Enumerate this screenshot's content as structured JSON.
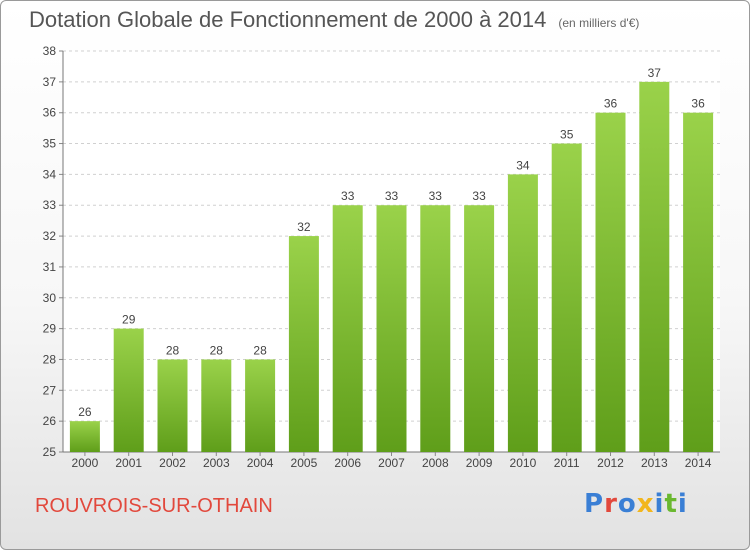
{
  "title": "Dotation Globale de Fonctionnement de 2000 à 2014",
  "subtitle": "(en milliers d'€)",
  "commune": "ROUVROIS-SUR-OTHAIN",
  "logo": {
    "text": "Proxiti",
    "letter_colors": [
      "#3a7fd5",
      "#e2483c",
      "#3a7fd5",
      "#f2b61d",
      "#3a7fd5",
      "#6ab82f",
      "#3a7fd5"
    ]
  },
  "colors": {
    "bar_light": "#9ad24a",
    "bar_dark": "#5f9e1a",
    "grid": "#d0d0d0",
    "commune": "#e2483c"
  },
  "chart_data": {
    "type": "bar",
    "categories": [
      "2000",
      "2001",
      "2002",
      "2003",
      "2004",
      "2005",
      "2006",
      "2007",
      "2008",
      "2009",
      "2010",
      "2011",
      "2012",
      "2013",
      "2014"
    ],
    "values": [
      26,
      29,
      28,
      28,
      28,
      32,
      33,
      33,
      33,
      33,
      34,
      35,
      36,
      37,
      36
    ],
    "ylim": [
      25,
      38
    ],
    "yticks": [
      25,
      26,
      27,
      28,
      29,
      30,
      31,
      32,
      33,
      34,
      35,
      36,
      37,
      38
    ],
    "grid": true,
    "data_labels": true
  }
}
